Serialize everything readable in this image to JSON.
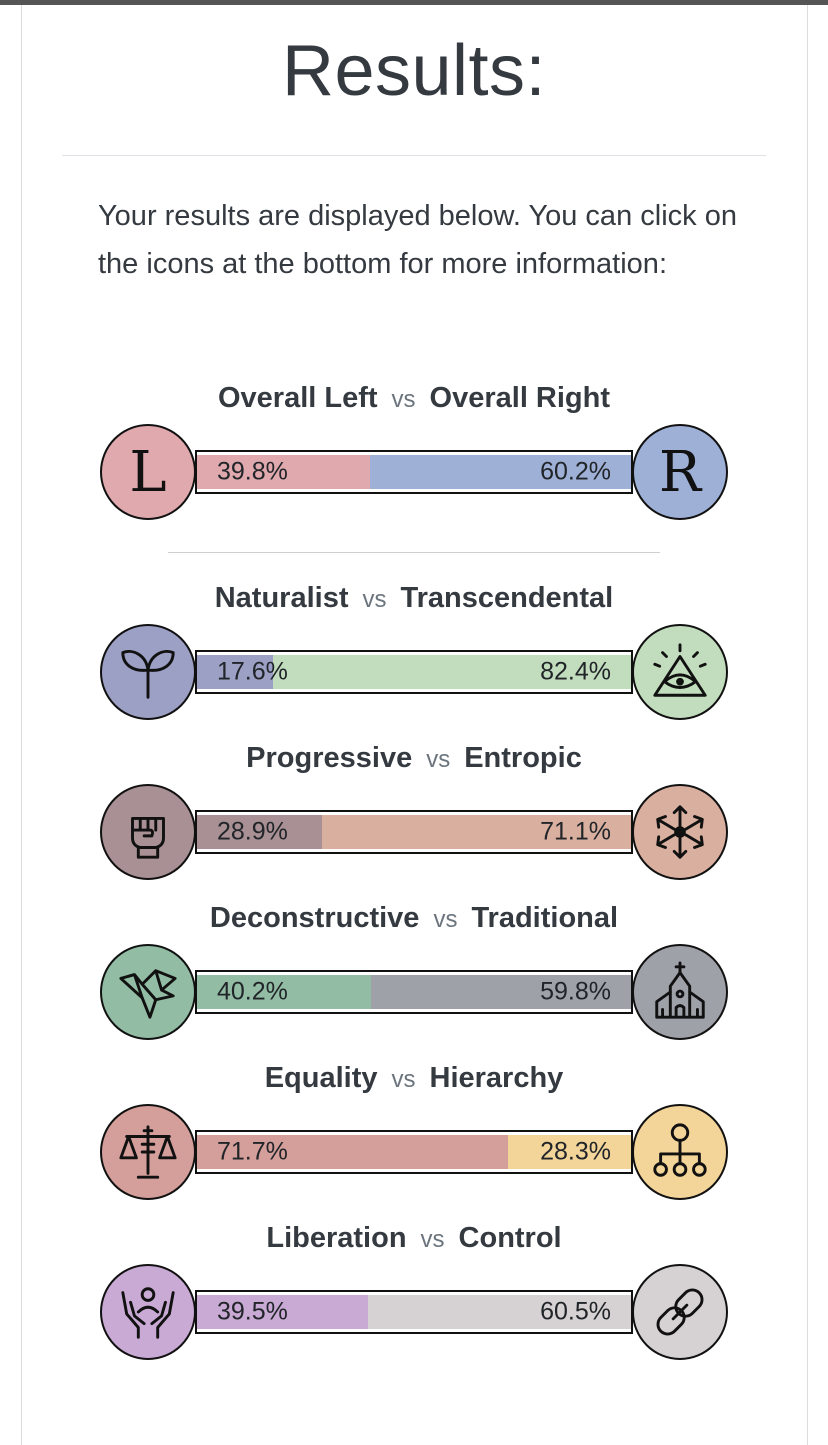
{
  "page": {
    "title": "Results:",
    "intro": "Your results are displayed below. You can click on the icons at the bottom for more information:",
    "vs": "vs"
  },
  "overall": {
    "left_label": "Overall Left",
    "right_label": "Overall Right",
    "left_letter": "L",
    "right_letter": "R",
    "left_pct": "39.8%",
    "right_pct": "60.2%",
    "left_value": 39.8,
    "left_color": "#e0a9ae",
    "right_color": "#9eb0d6",
    "left_icon": "letter-l-icon",
    "right_icon": "letter-r-icon"
  },
  "axes": [
    {
      "left_label": "Naturalist",
      "right_label": "Transcendental",
      "left_pct": "17.6%",
      "right_pct": "82.4%",
      "left_value": 17.6,
      "left_color": "#9ca0c4",
      "right_color": "#c2ddbd",
      "left_icon": "sprout-icon",
      "right_icon": "all-seeing-eye-icon"
    },
    {
      "left_label": "Progressive",
      "right_label": "Entropic",
      "left_pct": "28.9%",
      "right_pct": "71.1%",
      "left_value": 28.9,
      "left_color": "#a89094",
      "right_color": "#d9b0a0",
      "left_icon": "raised-fist-icon",
      "right_icon": "scatter-arrows-icon"
    },
    {
      "left_label": "Deconstructive",
      "right_label": "Traditional",
      "left_pct": "40.2%",
      "right_pct": "59.8%",
      "left_value": 40.2,
      "left_color": "#92bda4",
      "right_color": "#9fa1a8",
      "left_icon": "origami-bird-icon",
      "right_icon": "church-icon"
    },
    {
      "left_label": "Equality",
      "right_label": "Hierarchy",
      "left_pct": "71.7%",
      "right_pct": "28.3%",
      "left_value": 71.7,
      "left_color": "#d49e9a",
      "right_color": "#f3d599",
      "left_icon": "scales-icon",
      "right_icon": "hierarchy-icon"
    },
    {
      "left_label": "Liberation",
      "right_label": "Control",
      "left_pct": "39.5%",
      "right_pct": "60.5%",
      "left_value": 39.5,
      "left_color": "#c9aad4",
      "right_color": "#d6d2d3",
      "left_icon": "open-hands-person-icon",
      "right_icon": "chain-link-icon"
    }
  ]
}
